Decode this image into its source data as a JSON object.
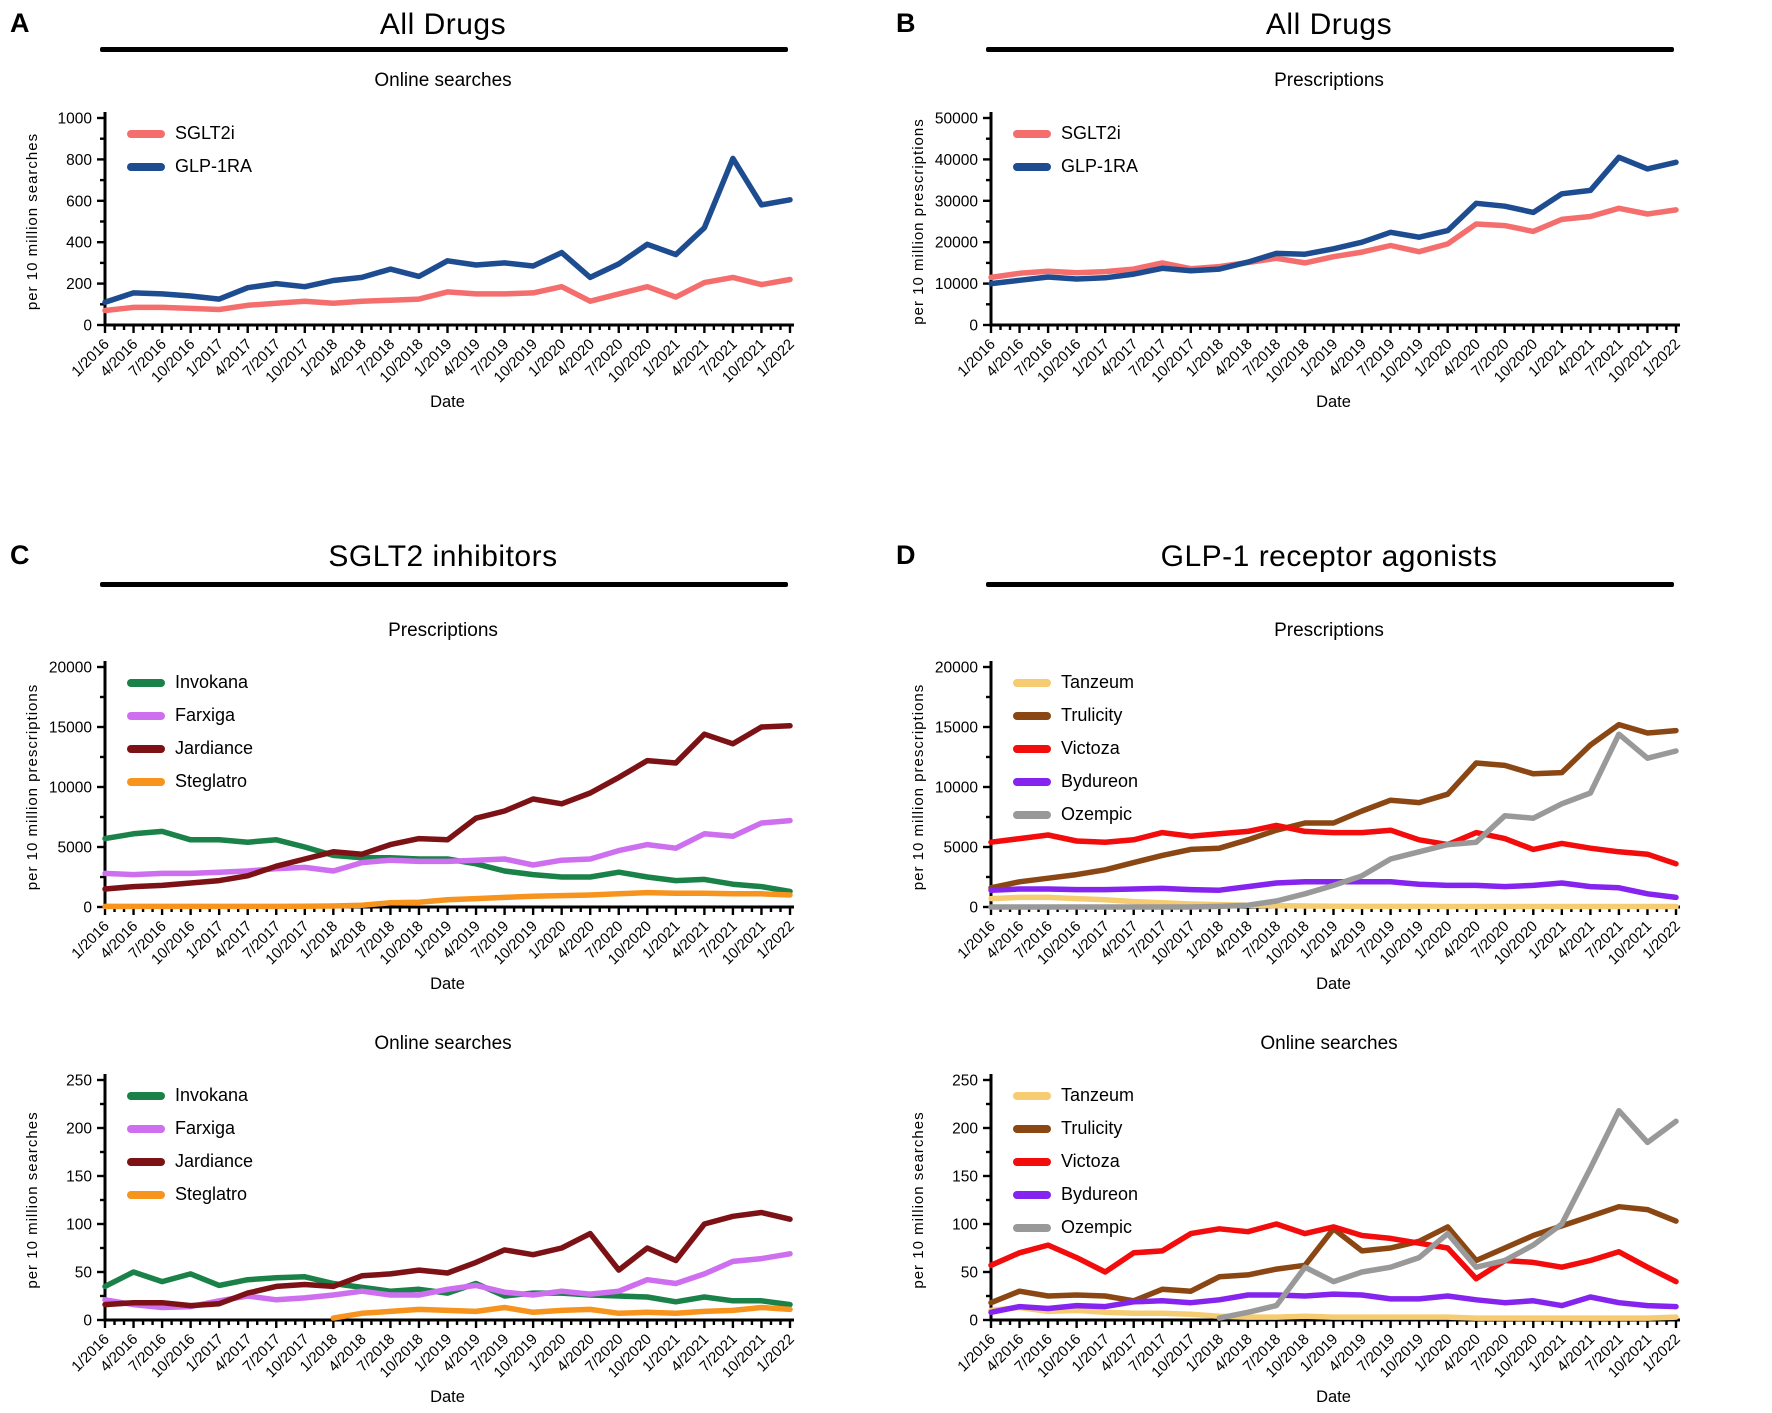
{
  "panels": [
    {
      "letter": "A",
      "title": "All Drugs"
    },
    {
      "letter": "B",
      "title": "All Drugs"
    },
    {
      "letter": "C",
      "title": "SGLT2 inhibitors"
    },
    {
      "letter": "D",
      "title": "GLP-1 receptor agonists"
    }
  ],
  "chart_data": [
    {
      "type": "line",
      "panel": "A",
      "title": "Online searches",
      "xlabel": "Date",
      "ylabel": "per 10 million searches",
      "ylim": [
        0,
        1000
      ],
      "ytick_interval": 200,
      "yminor_interval": 100,
      "grid": false,
      "legend_position": "top-left",
      "categories": [
        "1/2016",
        "4/2016",
        "7/2016",
        "10/2016",
        "1/2017",
        "4/2017",
        "7/2017",
        "10/2017",
        "1/2018",
        "4/2018",
        "7/2018",
        "10/2018",
        "1/2019",
        "4/2019",
        "7/2019",
        "10/2019",
        "1/2020",
        "4/2020",
        "7/2020",
        "10/2020",
        "1/2021",
        "4/2021",
        "7/2021",
        "10/2021",
        "1/2022"
      ],
      "series": [
        {
          "name": "SGLT2i",
          "color": "#F56E6E",
          "values": [
            70,
            85,
            85,
            80,
            75,
            95,
            105,
            115,
            105,
            115,
            120,
            125,
            160,
            150,
            150,
            155,
            185,
            115,
            150,
            185,
            135,
            205,
            230,
            195,
            220
          ]
        },
        {
          "name": "GLP-1RA",
          "color": "#1D4C91",
          "values": [
            110,
            155,
            150,
            140,
            125,
            180,
            200,
            185,
            215,
            230,
            270,
            235,
            310,
            290,
            300,
            285,
            350,
            230,
            295,
            390,
            340,
            470,
            805,
            580,
            605
          ]
        }
      ]
    },
    {
      "type": "line",
      "panel": "B",
      "title": "Prescriptions",
      "xlabel": "Date",
      "ylabel": "per 10 million prescriptions",
      "ylim": [
        0,
        50000
      ],
      "ytick_interval": 10000,
      "yminor_interval": 5000,
      "grid": false,
      "legend_position": "top-left",
      "categories": [
        "1/2016",
        "4/2016",
        "7/2016",
        "10/2016",
        "1/2017",
        "4/2017",
        "7/2017",
        "10/2017",
        "1/2018",
        "4/2018",
        "7/2018",
        "10/2018",
        "1/2019",
        "4/2019",
        "7/2019",
        "10/2019",
        "1/2020",
        "4/2020",
        "7/2020",
        "10/2020",
        "1/2021",
        "4/2021",
        "7/2021",
        "10/2021",
        "1/2022"
      ],
      "series": [
        {
          "name": "SGLT2i",
          "color": "#F56E6E",
          "values": [
            11500,
            12500,
            13000,
            12600,
            12900,
            13500,
            15000,
            13600,
            14100,
            15100,
            16100,
            15000,
            16500,
            17600,
            19200,
            17700,
            19600,
            24400,
            24000,
            22600,
            25500,
            26200,
            28200,
            26800,
            27800
          ]
        },
        {
          "name": "GLP-1RA",
          "color": "#1D4C91",
          "values": [
            10000,
            10800,
            11600,
            11100,
            11400,
            12300,
            13700,
            13100,
            13500,
            15200,
            17300,
            17100,
            18400,
            20000,
            22400,
            21200,
            22800,
            29400,
            28700,
            27200,
            31700,
            32500,
            40500,
            37700,
            39300
          ]
        }
      ]
    },
    {
      "type": "line",
      "panel": "C",
      "title": "Prescriptions",
      "xlabel": "Date",
      "ylabel": "per 10 million prescriptions",
      "ylim": [
        0,
        20000
      ],
      "ytick_interval": 5000,
      "yminor_interval": 2500,
      "grid": false,
      "legend_position": "top-left",
      "categories": [
        "1/2016",
        "4/2016",
        "7/2016",
        "10/2016",
        "1/2017",
        "4/2017",
        "7/2017",
        "10/2017",
        "1/2018",
        "4/2018",
        "7/2018",
        "10/2018",
        "1/2019",
        "4/2019",
        "7/2019",
        "10/2019",
        "1/2020",
        "4/2020",
        "7/2020",
        "10/2020",
        "1/2021",
        "4/2021",
        "7/2021",
        "10/2021",
        "1/2022"
      ],
      "series": [
        {
          "name": "Invokana",
          "color": "#1A8148",
          "values": [
            5700,
            6100,
            6300,
            5600,
            5600,
            5400,
            5600,
            5000,
            4300,
            4100,
            4100,
            4000,
            4000,
            3600,
            3000,
            2700,
            2500,
            2500,
            2900,
            2500,
            2200,
            2300,
            1900,
            1700,
            1300
          ]
        },
        {
          "name": "Farxiga",
          "color": "#CE6FF0",
          "values": [
            2800,
            2700,
            2800,
            2800,
            2900,
            3000,
            3200,
            3300,
            3000,
            3700,
            3900,
            3800,
            3800,
            3900,
            4000,
            3500,
            3900,
            4000,
            4700,
            5200,
            4900,
            6100,
            5900,
            7000,
            7200
          ]
        },
        {
          "name": "Jardiance",
          "color": "#7C1215",
          "values": [
            1500,
            1700,
            1800,
            2000,
            2200,
            2600,
            3400,
            4000,
            4600,
            4400,
            5200,
            5700,
            5600,
            7400,
            8000,
            9000,
            8600,
            9500,
            10800,
            12200,
            12000,
            14400,
            13600,
            15000,
            15100
          ]
        },
        {
          "name": "Steglatro",
          "color": "#F7941D",
          "values": [
            50,
            50,
            50,
            50,
            50,
            50,
            50,
            60,
            80,
            150,
            350,
            400,
            600,
            700,
            800,
            900,
            950,
            1000,
            1100,
            1200,
            1150,
            1150,
            1100,
            1100,
            1000
          ]
        }
      ]
    },
    {
      "type": "line",
      "panel": "C",
      "title": "Online searches",
      "xlabel": "Date",
      "ylabel": "per 10 million searches",
      "ylim": [
        0,
        250
      ],
      "ytick_interval": 50,
      "yminor_interval": 25,
      "grid": false,
      "legend_position": "top-left",
      "categories": [
        "1/2016",
        "4/2016",
        "7/2016",
        "10/2016",
        "1/2017",
        "4/2017",
        "7/2017",
        "10/2017",
        "1/2018",
        "4/2018",
        "7/2018",
        "10/2018",
        "1/2019",
        "4/2019",
        "7/2019",
        "10/2019",
        "1/2020",
        "4/2020",
        "7/2020",
        "10/2020",
        "1/2021",
        "4/2021",
        "7/2021",
        "10/2021",
        "1/2022"
      ],
      "series": [
        {
          "name": "Invokana",
          "color": "#1A8148",
          "values": [
            35,
            50,
            40,
            48,
            36,
            42,
            44,
            45,
            38,
            34,
            30,
            32,
            28,
            38,
            25,
            28,
            28,
            26,
            25,
            24,
            19,
            24,
            20,
            20,
            16
          ]
        },
        {
          "name": "Farxiga",
          "color": "#CE6FF0",
          "values": [
            21,
            16,
            13,
            14,
            20,
            25,
            21,
            23,
            26,
            30,
            26,
            26,
            32,
            36,
            29,
            26,
            30,
            27,
            30,
            42,
            38,
            48,
            61,
            64,
            69
          ]
        },
        {
          "name": "Jardiance",
          "color": "#7C1215",
          "values": [
            16,
            18,
            18,
            15,
            17,
            28,
            35,
            37,
            35,
            46,
            48,
            52,
            49,
            60,
            73,
            68,
            75,
            90,
            52,
            75,
            62,
            100,
            108,
            112,
            105
          ]
        },
        {
          "name": "Steglatro",
          "color": "#F7941D",
          "values": [
            null,
            null,
            null,
            null,
            null,
            null,
            null,
            null,
            2,
            7,
            9,
            11,
            10,
            9,
            13,
            8,
            10,
            11,
            7,
            8,
            7,
            9,
            10,
            13,
            11
          ]
        }
      ]
    },
    {
      "type": "line",
      "panel": "D",
      "title": "Prescriptions",
      "xlabel": "Date",
      "ylabel": "per 10 million prescriptions",
      "ylim": [
        0,
        20000
      ],
      "ytick_interval": 5000,
      "yminor_interval": 2500,
      "grid": false,
      "legend_position": "top-left",
      "categories": [
        "1/2016",
        "4/2016",
        "7/2016",
        "10/2016",
        "1/2017",
        "4/2017",
        "7/2017",
        "10/2017",
        "1/2018",
        "4/2018",
        "7/2018",
        "10/2018",
        "1/2019",
        "4/2019",
        "7/2019",
        "10/2019",
        "1/2020",
        "4/2020",
        "7/2020",
        "10/2020",
        "1/2021",
        "4/2021",
        "7/2021",
        "10/2021",
        "1/2022"
      ],
      "series": [
        {
          "name": "Tanzeum",
          "color": "#F6CC72",
          "values": [
            700,
            800,
            800,
            700,
            600,
            450,
            350,
            250,
            200,
            150,
            100,
            80,
            60,
            50,
            50,
            50,
            40,
            40,
            40,
            40,
            40,
            40,
            40,
            40,
            40
          ]
        },
        {
          "name": "Trulicity",
          "color": "#8A4713",
          "values": [
            1600,
            2100,
            2400,
            2700,
            3100,
            3700,
            4300,
            4800,
            4900,
            5600,
            6400,
            7000,
            7000,
            8000,
            8900,
            8700,
            9400,
            12000,
            11800,
            11100,
            11200,
            13500,
            15200,
            14500,
            14700
          ]
        },
        {
          "name": "Victoza",
          "color": "#F20C0C",
          "values": [
            5400,
            5700,
            6000,
            5500,
            5400,
            5600,
            6200,
            5900,
            6100,
            6300,
            6800,
            6300,
            6200,
            6200,
            6400,
            5600,
            5200,
            6200,
            5700,
            4800,
            5300,
            4900,
            4600,
            4400,
            3600
          ]
        },
        {
          "name": "Bydureon",
          "color": "#8424EE",
          "values": [
            1400,
            1500,
            1500,
            1450,
            1450,
            1500,
            1550,
            1450,
            1400,
            1700,
            2000,
            2100,
            2100,
            2100,
            2100,
            1900,
            1800,
            1800,
            1700,
            1800,
            2000,
            1700,
            1600,
            1100,
            800
          ]
        },
        {
          "name": "Ozempic",
          "color": "#999999",
          "values": [
            0,
            0,
            0,
            0,
            0,
            0,
            0,
            0,
            50,
            150,
            500,
            1100,
            1800,
            2600,
            4000,
            4600,
            5200,
            5400,
            7600,
            7400,
            8600,
            9500,
            14400,
            12400,
            13000
          ]
        }
      ]
    },
    {
      "type": "line",
      "panel": "D",
      "title": "Online searches",
      "xlabel": "Date",
      "ylabel": "per 10 million searches",
      "ylim": [
        0,
        250
      ],
      "ytick_interval": 50,
      "yminor_interval": 25,
      "grid": false,
      "legend_position": "top-left",
      "categories": [
        "1/2016",
        "4/2016",
        "7/2016",
        "10/2016",
        "1/2017",
        "4/2017",
        "7/2017",
        "10/2017",
        "1/2018",
        "4/2018",
        "7/2018",
        "10/2018",
        "1/2019",
        "4/2019",
        "7/2019",
        "10/2019",
        "1/2020",
        "4/2020",
        "7/2020",
        "10/2020",
        "1/2021",
        "4/2021",
        "7/2021",
        "10/2021",
        "1/2022"
      ],
      "series": [
        {
          "name": "Tanzeum",
          "color": "#F6CC72",
          "values": [
            10,
            13,
            9,
            10,
            8,
            7,
            7,
            6,
            4,
            3,
            3,
            4,
            3,
            3,
            3,
            3,
            3,
            2,
            2,
            2,
            2,
            2,
            2,
            2,
            3
          ]
        },
        {
          "name": "Trulicity",
          "color": "#8A4713",
          "values": [
            18,
            30,
            25,
            26,
            25,
            20,
            32,
            30,
            45,
            47,
            53,
            57,
            95,
            72,
            75,
            82,
            97,
            62,
            75,
            88,
            98,
            108,
            118,
            115,
            103
          ]
        },
        {
          "name": "Victoza",
          "color": "#F20C0C",
          "values": [
            57,
            70,
            78,
            65,
            50,
            70,
            72,
            90,
            95,
            92,
            100,
            90,
            97,
            88,
            85,
            80,
            75,
            43,
            62,
            60,
            55,
            62,
            71,
            55,
            40
          ]
        },
        {
          "name": "Bydureon",
          "color": "#8424EE",
          "values": [
            8,
            14,
            12,
            15,
            14,
            19,
            20,
            18,
            21,
            26,
            26,
            25,
            27,
            26,
            22,
            22,
            25,
            21,
            18,
            20,
            15,
            24,
            18,
            15,
            14
          ]
        },
        {
          "name": "Ozempic",
          "color": "#999999",
          "values": [
            null,
            null,
            null,
            null,
            null,
            null,
            null,
            null,
            2,
            8,
            15,
            55,
            40,
            50,
            55,
            65,
            90,
            55,
            62,
            78,
            100,
            158,
            218,
            185,
            207
          ]
        }
      ]
    }
  ]
}
